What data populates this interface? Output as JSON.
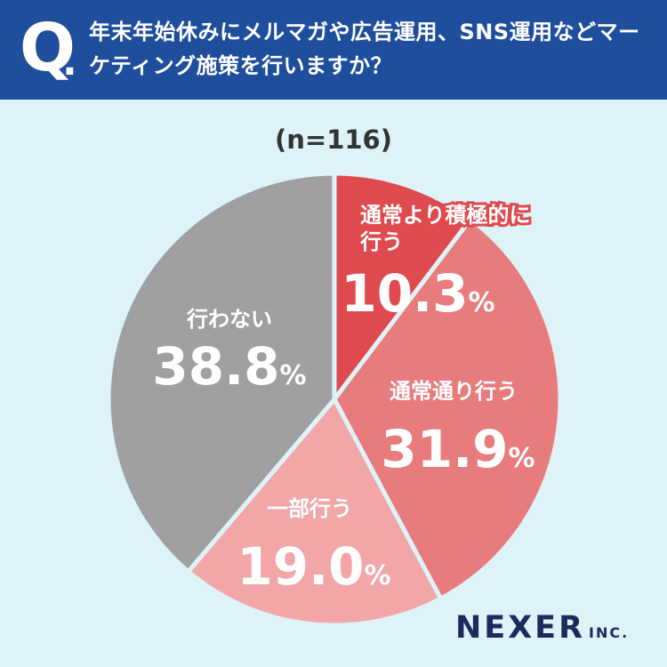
{
  "header": {
    "q_mark": "Q",
    "q_dot": ".",
    "question": "年末年始休みにメルマガや広告運用、SNS運用などマーケティング施策を行いますか？"
  },
  "chart_data": {
    "type": "pie",
    "note": "(n=116)",
    "labels": [
      "通常より積極的に行う",
      "通常通り行う",
      "一部行う",
      "行わない"
    ],
    "values": [
      10.3,
      31.9,
      19.0,
      38.8
    ],
    "value_labels": [
      "10.3%",
      "31.9%",
      "19.0%",
      "38.8%"
    ],
    "colors": [
      "#df4a4f",
      "#e87c7d",
      "#f2a6a8",
      "#a0a0a0"
    ],
    "start_angle": "top",
    "direction": "clockwise"
  },
  "logo": {
    "name": "NEXER",
    "suffix": "INC."
  }
}
